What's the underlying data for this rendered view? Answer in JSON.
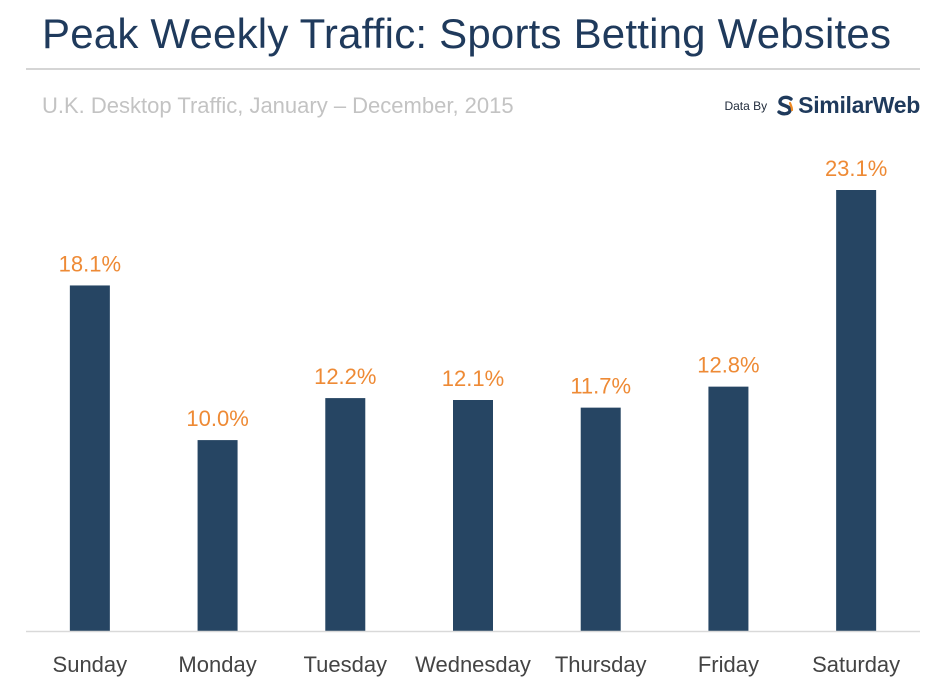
{
  "header": {
    "title": "Peak Weekly Traffic: Sports Betting Websites",
    "subtitle": "U.K. Desktop Traffic, January – December, 2015"
  },
  "credit": {
    "prefix": "Data By",
    "brand": "SimilarWeb",
    "logo_icon": "similarweb-s-logo-icon"
  },
  "colors": {
    "bar": "#264563",
    "value_label": "#ee8a35",
    "title": "#1f3a5c",
    "subtitle": "#c3c3c3",
    "axis": "#d9d9d9",
    "tick_label": "#444444",
    "logo_accent": "#f08a24"
  },
  "chart_data": {
    "type": "bar",
    "title": "Peak Weekly Traffic: Sports Betting Websites",
    "subtitle": "U.K. Desktop Traffic, January – December, 2015",
    "xlabel": "",
    "ylabel": "",
    "categories": [
      "Sunday",
      "Monday",
      "Tuesday",
      "Wednesday",
      "Thursday",
      "Friday",
      "Saturday"
    ],
    "values": [
      18.1,
      10.0,
      12.2,
      12.1,
      11.7,
      12.8,
      23.1
    ],
    "value_labels": [
      "18.1%",
      "10.0%",
      "12.2%",
      "12.1%",
      "11.7%",
      "12.8%",
      "23.1%"
    ],
    "ylim": [
      0,
      23.1
    ],
    "grid": false,
    "legend": "none"
  }
}
